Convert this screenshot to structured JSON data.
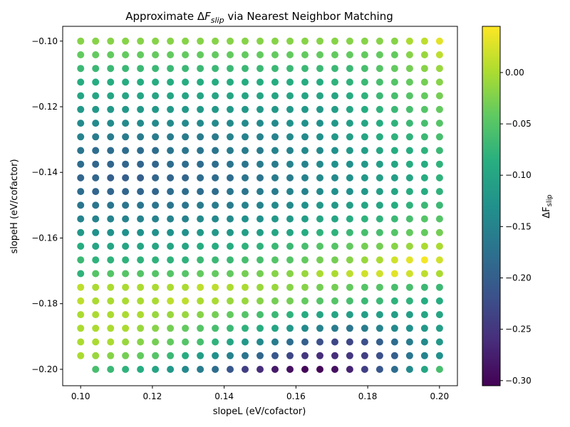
{
  "chart_data": {
    "type": "scatter",
    "title_prefix": "Approximate Δ",
    "title_var": "F",
    "title_sub": "slip",
    "title_suffix": " via Nearest Neighbor Matching",
    "xlabel": "slopeL (eV/cofactor)",
    "ylabel": "slopeH (eV/cofactor)",
    "colorbar_label_prefix": "ΔF",
    "colorbar_label_sub": "slip",
    "xlim": [
      0.095,
      0.205
    ],
    "ylim": [
      -0.205,
      -0.0955
    ],
    "clim": [
      -0.305,
      0.045
    ],
    "colormap": "viridis",
    "xticks": [
      0.1,
      0.12,
      0.14,
      0.16,
      0.18,
      0.2
    ],
    "xtick_labels": [
      "0.10",
      "0.12",
      "0.14",
      "0.16",
      "0.18",
      "0.20"
    ],
    "yticks": [
      -0.2,
      -0.18,
      -0.16,
      -0.14,
      -0.12,
      -0.1
    ],
    "ytick_labels": [
      "−0.20",
      "−0.18",
      "−0.16",
      "−0.14",
      "−0.12",
      "−0.10"
    ],
    "cticks": [
      -0.3,
      -0.25,
      -0.2,
      -0.15,
      -0.1,
      -0.05,
      0.0
    ],
    "ctick_labels": [
      "−0.30",
      "−0.25",
      "−0.20",
      "−0.15",
      "−0.10",
      "−0.05",
      "0.00"
    ],
    "grid_x": {
      "start": 0.1,
      "step": 0.004167,
      "count": 25
    },
    "grid_y": {
      "start": -0.1,
      "step": -0.004167,
      "count": 25
    },
    "values": [
      [
        -0.02,
        -0.02,
        -0.02,
        -0.02,
        -0.02,
        -0.02,
        -0.02,
        -0.02,
        -0.02,
        -0.02,
        -0.02,
        -0.02,
        -0.02,
        -0.02,
        -0.02,
        -0.02,
        -0.02,
        -0.02,
        -0.02,
        -0.02,
        -0.02,
        -0.02,
        0.0,
        0.01,
        0.03
      ],
      [
        -0.04,
        -0.04,
        -0.04,
        -0.04,
        -0.04,
        -0.04,
        -0.04,
        -0.04,
        -0.04,
        -0.04,
        -0.04,
        -0.04,
        -0.04,
        -0.04,
        -0.04,
        -0.04,
        -0.04,
        -0.04,
        -0.04,
        -0.04,
        -0.04,
        -0.04,
        -0.02,
        -0.01,
        0.01
      ],
      [
        -0.07,
        -0.07,
        -0.07,
        -0.07,
        -0.07,
        -0.07,
        -0.07,
        -0.07,
        -0.07,
        -0.07,
        -0.07,
        -0.07,
        -0.07,
        -0.07,
        -0.07,
        -0.07,
        -0.07,
        -0.07,
        -0.07,
        -0.06,
        -0.05,
        -0.04,
        -0.03,
        -0.02,
        -0.01
      ],
      [
        -0.09,
        -0.09,
        -0.09,
        -0.09,
        -0.09,
        -0.09,
        -0.09,
        -0.09,
        -0.09,
        -0.09,
        -0.09,
        -0.09,
        -0.09,
        -0.09,
        -0.09,
        -0.09,
        -0.09,
        -0.08,
        -0.08,
        -0.07,
        -0.06,
        -0.05,
        -0.04,
        -0.03,
        -0.02
      ],
      [
        -0.1,
        -0.1,
        -0.1,
        -0.1,
        -0.1,
        -0.1,
        -0.1,
        -0.1,
        -0.1,
        -0.1,
        -0.1,
        -0.1,
        -0.1,
        -0.1,
        -0.1,
        -0.1,
        -0.1,
        -0.1,
        -0.09,
        -0.08,
        -0.07,
        -0.06,
        -0.05,
        -0.04,
        -0.03
      ],
      [
        -0.12,
        -0.12,
        -0.12,
        -0.12,
        -0.12,
        -0.12,
        -0.12,
        -0.12,
        -0.12,
        -0.12,
        -0.12,
        -0.12,
        -0.12,
        -0.12,
        -0.12,
        -0.12,
        -0.12,
        -0.11,
        -0.1,
        -0.09,
        -0.08,
        -0.07,
        -0.06,
        -0.05,
        -0.04
      ],
      [
        -0.14,
        -0.14,
        -0.14,
        -0.14,
        -0.14,
        -0.14,
        -0.14,
        -0.14,
        -0.14,
        -0.14,
        -0.14,
        -0.14,
        -0.14,
        -0.14,
        -0.13,
        -0.13,
        -0.13,
        -0.12,
        -0.11,
        -0.1,
        -0.09,
        -0.08,
        -0.07,
        -0.06,
        -0.05
      ],
      [
        -0.15,
        -0.16,
        -0.16,
        -0.16,
        -0.16,
        -0.16,
        -0.16,
        -0.16,
        -0.16,
        -0.16,
        -0.15,
        -0.15,
        -0.15,
        -0.15,
        -0.14,
        -0.14,
        -0.13,
        -0.12,
        -0.11,
        -0.1,
        -0.09,
        -0.08,
        -0.08,
        -0.07,
        -0.06
      ],
      [
        -0.17,
        -0.18,
        -0.18,
        -0.18,
        -0.18,
        -0.18,
        -0.17,
        -0.17,
        -0.17,
        -0.17,
        -0.16,
        -0.16,
        -0.16,
        -0.15,
        -0.15,
        -0.14,
        -0.14,
        -0.13,
        -0.12,
        -0.11,
        -0.1,
        -0.09,
        -0.09,
        -0.08,
        -0.07
      ],
      [
        -0.18,
        -0.19,
        -0.19,
        -0.19,
        -0.19,
        -0.19,
        -0.18,
        -0.18,
        -0.18,
        -0.18,
        -0.17,
        -0.17,
        -0.16,
        -0.16,
        -0.15,
        -0.15,
        -0.14,
        -0.13,
        -0.13,
        -0.12,
        -0.11,
        -0.1,
        -0.09,
        -0.09,
        -0.08
      ],
      [
        -0.19,
        -0.19,
        -0.2,
        -0.2,
        -0.2,
        -0.19,
        -0.19,
        -0.19,
        -0.18,
        -0.18,
        -0.18,
        -0.17,
        -0.17,
        -0.16,
        -0.16,
        -0.15,
        -0.14,
        -0.14,
        -0.13,
        -0.12,
        -0.11,
        -0.11,
        -0.1,
        -0.09,
        -0.08
      ],
      [
        -0.18,
        -0.19,
        -0.19,
        -0.19,
        -0.19,
        -0.19,
        -0.18,
        -0.18,
        -0.18,
        -0.18,
        -0.17,
        -0.17,
        -0.16,
        -0.16,
        -0.15,
        -0.15,
        -0.14,
        -0.13,
        -0.13,
        -0.12,
        -0.11,
        -0.1,
        -0.09,
        -0.09,
        -0.08
      ],
      [
        -0.17,
        -0.17,
        -0.17,
        -0.17,
        -0.17,
        -0.17,
        -0.17,
        -0.17,
        -0.16,
        -0.16,
        -0.16,
        -0.15,
        -0.15,
        -0.14,
        -0.14,
        -0.13,
        -0.12,
        -0.12,
        -0.11,
        -0.1,
        -0.1,
        -0.09,
        -0.08,
        -0.07,
        -0.07
      ],
      [
        -0.15,
        -0.15,
        -0.15,
        -0.15,
        -0.15,
        -0.15,
        -0.15,
        -0.15,
        -0.14,
        -0.14,
        -0.14,
        -0.13,
        -0.13,
        -0.12,
        -0.12,
        -0.11,
        -0.1,
        -0.1,
        -0.09,
        -0.08,
        -0.08,
        -0.07,
        -0.06,
        -0.05,
        -0.05
      ],
      [
        -0.12,
        -0.13,
        -0.13,
        -0.13,
        -0.13,
        -0.13,
        -0.13,
        -0.13,
        -0.12,
        -0.12,
        -0.12,
        -0.11,
        -0.11,
        -0.1,
        -0.1,
        -0.09,
        -0.08,
        -0.08,
        -0.07,
        -0.06,
        -0.06,
        -0.05,
        -0.04,
        -0.04,
        -0.03
      ],
      [
        -0.09,
        -0.1,
        -0.1,
        -0.1,
        -0.1,
        -0.1,
        -0.1,
        -0.1,
        -0.09,
        -0.09,
        -0.09,
        -0.08,
        -0.08,
        -0.07,
        -0.07,
        -0.06,
        -0.05,
        -0.05,
        -0.04,
        -0.03,
        -0.03,
        -0.02,
        -0.01,
        0.0,
        0.0
      ],
      [
        -0.07,
        -0.08,
        -0.08,
        -0.08,
        -0.08,
        -0.08,
        -0.08,
        -0.08,
        -0.07,
        -0.07,
        -0.07,
        -0.06,
        -0.06,
        -0.05,
        -0.05,
        -0.04,
        -0.03,
        -0.03,
        -0.02,
        -0.01,
        0.0,
        0.02,
        0.03,
        0.04,
        0.02
      ],
      [
        -0.08,
        -0.05,
        -0.05,
        -0.05,
        -0.05,
        -0.05,
        -0.05,
        -0.05,
        -0.04,
        -0.04,
        -0.04,
        -0.03,
        -0.03,
        -0.02,
        -0.02,
        -0.01,
        0.0,
        0.0,
        0.01,
        0.02,
        0.02,
        0.03,
        0.02,
        0.01,
        0.0
      ],
      [
        0.01,
        0.0,
        0.0,
        0.0,
        0.0,
        0.0,
        0.0,
        0.0,
        0.01,
        0.01,
        0.0,
        0.0,
        -0.01,
        -0.01,
        -0.02,
        -0.02,
        -0.03,
        -0.03,
        -0.04,
        -0.05,
        -0.05,
        -0.06,
        -0.06,
        -0.07,
        -0.07
      ],
      [
        0.01,
        0.0,
        0.0,
        0.0,
        0.0,
        0.0,
        0.01,
        0.01,
        0.0,
        0.0,
        -0.01,
        -0.01,
        -0.02,
        -0.03,
        -0.03,
        -0.04,
        -0.05,
        -0.05,
        -0.06,
        -0.07,
        -0.07,
        -0.08,
        -0.08,
        -0.09,
        -0.09
      ],
      [
        0.0,
        0.0,
        0.0,
        0.0,
        0.0,
        -0.01,
        -0.01,
        -0.01,
        -0.02,
        -0.03,
        -0.04,
        -0.05,
        -0.06,
        -0.07,
        -0.08,
        -0.09,
        -0.1,
        -0.1,
        -0.11,
        -0.11,
        -0.11,
        -0.11,
        -0.11,
        -0.1,
        -0.1
      ],
      [
        0.0,
        0.0,
        0.0,
        0.0,
        -0.01,
        -0.02,
        -0.03,
        -0.04,
        -0.05,
        -0.06,
        -0.07,
        -0.08,
        -0.09,
        -0.1,
        -0.12,
        -0.14,
        -0.15,
        -0.16,
        -0.17,
        -0.16,
        -0.15,
        -0.14,
        -0.13,
        -0.12,
        -0.11
      ],
      [
        0.0,
        0.0,
        0.0,
        -0.01,
        -0.02,
        -0.03,
        -0.04,
        -0.05,
        -0.06,
        -0.08,
        -0.1,
        -0.12,
        -0.14,
        -0.16,
        -0.18,
        -0.2,
        -0.22,
        -0.23,
        -0.23,
        -0.22,
        -0.2,
        -0.18,
        -0.16,
        -0.14,
        -0.12
      ],
      [
        0.0,
        -0.01,
        -0.02,
        -0.03,
        -0.04,
        -0.05,
        -0.07,
        -0.09,
        -0.11,
        -0.13,
        -0.15,
        -0.17,
        -0.19,
        -0.21,
        -0.23,
        -0.25,
        -0.26,
        -0.26,
        -0.25,
        -0.24,
        -0.22,
        -0.2,
        -0.17,
        -0.15,
        -0.13
      ],
      [
        null,
        -0.06,
        -0.07,
        -0.08,
        -0.09,
        -0.1,
        -0.12,
        -0.14,
        -0.16,
        -0.18,
        -0.21,
        -0.24,
        -0.26,
        -0.28,
        -0.29,
        -0.3,
        -0.3,
        -0.29,
        -0.27,
        -0.24,
        -0.21,
        -0.18,
        -0.14,
        -0.1,
        -0.06
      ]
    ]
  }
}
